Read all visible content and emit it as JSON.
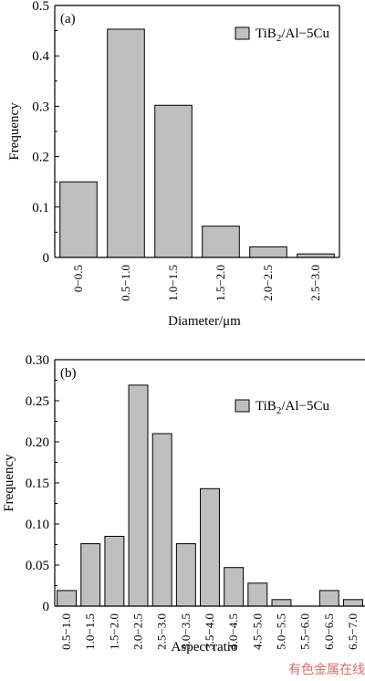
{
  "chart_data": [
    {
      "type": "bar",
      "panel_label": "(a)",
      "legend": "TiB2/Al−5Cu",
      "legend_base": "TiB",
      "legend_sub": "2",
      "legend_rest": "/Al−5Cu",
      "categories": [
        "0−0.5",
        "0.5−1.0",
        "1.0−1.5",
        "1.5−2.0",
        "2.0−2.5",
        "2.5−3.0"
      ],
      "values": [
        0.15,
        0.453,
        0.302,
        0.062,
        0.021,
        0.007
      ],
      "xlabel": "Diameter/μm",
      "ylabel": "Frequency",
      "ylim": [
        0,
        0.5
      ],
      "yticks": [
        "0",
        "0.1",
        "0.2",
        "0.3",
        "0.4",
        "0.5"
      ],
      "bar_color": "#bfbfbf"
    },
    {
      "type": "bar",
      "panel_label": "(b)",
      "legend": "TiB2/Al−5Cu",
      "legend_base": "TiB",
      "legend_sub": "2",
      "legend_rest": "/Al−5Cu",
      "categories": [
        "0.5−1.0",
        "1.0−1.5",
        "1.5−2.0",
        "2.0−2.5",
        "2.5−3.0",
        "3.0−3.5",
        "3.5−4.0",
        "4.0−4.5",
        "4.5−5.0",
        "5.0−5.5",
        "5.5−6.0",
        "6.0−6.5",
        "6.5−7.0"
      ],
      "values": [
        0.019,
        0.076,
        0.085,
        0.269,
        0.21,
        0.076,
        0.143,
        0.047,
        0.028,
        0.008,
        0.0,
        0.019,
        0.008
      ],
      "xlabel": "Aspect ratio",
      "ylabel": "Frequency",
      "ylim": [
        0,
        0.3
      ],
      "yticks": [
        "0",
        "0.05",
        "0.10",
        "0.15",
        "0.20",
        "0.25",
        "0.30"
      ],
      "bar_color": "#bfbfbf"
    }
  ],
  "watermark": "有色金属在线"
}
